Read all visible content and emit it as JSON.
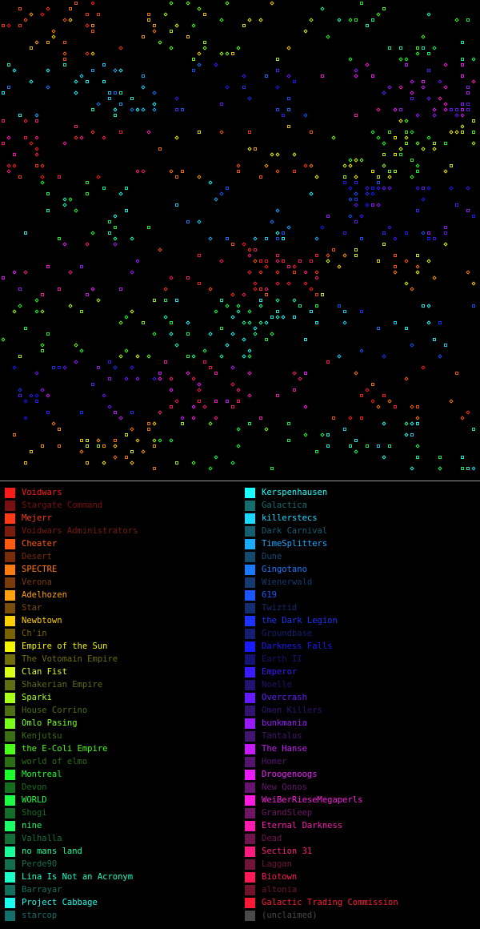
{
  "legend": {
    "left": [
      {
        "name": "Voidwars",
        "color": "#ff1a1a",
        "dim": false
      },
      {
        "name": "Stargate Command",
        "color": "#7a0f0f",
        "dim": true
      },
      {
        "name": "Mejerr",
        "color": "#ff3a14",
        "dim": false
      },
      {
        "name": "Voidwars Administrators",
        "color": "#7a1c0c",
        "dim": true
      },
      {
        "name": "Cheater",
        "color": "#ff5a0f",
        "dim": false
      },
      {
        "name": "Desert",
        "color": "#7a2c0a",
        "dim": true
      },
      {
        "name": "SPECTRE",
        "color": "#ff7a0f",
        "dim": false
      },
      {
        "name": "Verona",
        "color": "#7a3a0a",
        "dim": true
      },
      {
        "name": "Adelhozen",
        "color": "#ffa00f",
        "dim": false
      },
      {
        "name": "Star",
        "color": "#7a4c0a",
        "dim": true
      },
      {
        "name": "Newbtown",
        "color": "#ffd000",
        "dim": false
      },
      {
        "name": "Ch'in",
        "color": "#7a6200",
        "dim": true
      },
      {
        "name": "Empire of the Sun",
        "color": "#f5f500",
        "dim": false
      },
      {
        "name": "The Votomain Empire",
        "color": "#6e6e0a",
        "dim": true
      },
      {
        "name": "Clan Fist",
        "color": "#d8ff1a",
        "dim": false
      },
      {
        "name": "Shakerian Empire",
        "color": "#5e6e14",
        "dim": true
      },
      {
        "name": "Sparki",
        "color": "#a8ff1a",
        "dim": false
      },
      {
        "name": "House Corrino",
        "color": "#4e6e14",
        "dim": true
      },
      {
        "name": "Omlo Pasing",
        "color": "#7aff1a",
        "dim": false
      },
      {
        "name": "Kenjutsu",
        "color": "#3a6e14",
        "dim": true
      },
      {
        "name": "the E-Coli Empire",
        "color": "#4aff1a",
        "dim": false
      },
      {
        "name": "world of elmo",
        "color": "#2a6e14",
        "dim": true
      },
      {
        "name": "Montreal",
        "color": "#1aff2a",
        "dim": false
      },
      {
        "name": "Devon",
        "color": "#146e1e",
        "dim": true
      },
      {
        "name": "WORLD",
        "color": "#1aff44",
        "dim": false
      },
      {
        "name": "Shogi",
        "color": "#146e2a",
        "dim": true
      },
      {
        "name": "nine",
        "color": "#1aff66",
        "dim": false
      },
      {
        "name": "Valhalla",
        "color": "#146e38",
        "dim": true
      },
      {
        "name": "no mans land",
        "color": "#1aff99",
        "dim": false
      },
      {
        "name": "Perde90",
        "color": "#146e4c",
        "dim": true
      },
      {
        "name": "Lina Is Not an Acronym",
        "color": "#1affc8",
        "dim": false
      },
      {
        "name": "Barrayar",
        "color": "#146e5e",
        "dim": true
      },
      {
        "name": "Project Cabbage",
        "color": "#1affee",
        "dim": false
      },
      {
        "name": "starcop",
        "color": "#146e6a",
        "dim": true
      }
    ],
    "right": [
      {
        "name": "Kerspenhausen",
        "color": "#1affff",
        "dim": false
      },
      {
        "name": "Galactica",
        "color": "#146e70",
        "dim": true
      },
      {
        "name": "killerstecs",
        "color": "#1ad8ff",
        "dim": false
      },
      {
        "name": "Dark Carnival",
        "color": "#145e70",
        "dim": true
      },
      {
        "name": "TimeSplitters",
        "color": "#1aaaff",
        "dim": false
      },
      {
        "name": "Dune",
        "color": "#144a70",
        "dim": true
      },
      {
        "name": "Gingotano",
        "color": "#1a7aff",
        "dim": false
      },
      {
        "name": "Wienerwald",
        "color": "#143a70",
        "dim": true
      },
      {
        "name": "619",
        "color": "#1a55ff",
        "dim": false
      },
      {
        "name": "Twiztid",
        "color": "#142c70",
        "dim": true
      },
      {
        "name": "the Dark Legion",
        "color": "#1a33ff",
        "dim": false
      },
      {
        "name": "Groundbase",
        "color": "#141e70",
        "dim": true
      },
      {
        "name": "Darkness Falls",
        "color": "#1a1aff",
        "dim": false
      },
      {
        "name": "Earth II",
        "color": "#141470",
        "dim": true
      },
      {
        "name": "Emperor",
        "color": "#3a1aff",
        "dim": false
      },
      {
        "name": "Noelle",
        "color": "#201470",
        "dim": true
      },
      {
        "name": "Overcrash",
        "color": "#661aff",
        "dim": false
      },
      {
        "name": "Omen Killers",
        "color": "#301470",
        "dim": true
      },
      {
        "name": "bunkmania",
        "color": "#991aff",
        "dim": false
      },
      {
        "name": "Tantalus",
        "color": "#421470",
        "dim": true
      },
      {
        "name": "The Hanse",
        "color": "#c81aff",
        "dim": false
      },
      {
        "name": "Homer",
        "color": "#561470",
        "dim": true
      },
      {
        "name": "Droogenoogs",
        "color": "#ee1aff",
        "dim": false
      },
      {
        "name": "New Qonos",
        "color": "#661470",
        "dim": true
      },
      {
        "name": "WeiBerRieseMegaperls",
        "color": "#ff1ae0",
        "dim": false
      },
      {
        "name": "GrandSleep",
        "color": "#701464",
        "dim": true
      },
      {
        "name": "Eternal Darkness",
        "color": "#ff1ab0",
        "dim": false
      },
      {
        "name": "Dead",
        "color": "#70144e",
        "dim": true
      },
      {
        "name": "Section 31",
        "color": "#ff1a80",
        "dim": false
      },
      {
        "name": "Laggan",
        "color": "#70143a",
        "dim": true
      },
      {
        "name": "Biotown",
        "color": "#ff1a55",
        "dim": false
      },
      {
        "name": "altonia",
        "color": "#70142a",
        "dim": true
      },
      {
        "name": "Galactic Trading Commission",
        "color": "#ff1a33",
        "dim": false
      },
      {
        "name": "(unclaimed)",
        "color": "#4a4a4a",
        "dim": true
      }
    ]
  }
}
